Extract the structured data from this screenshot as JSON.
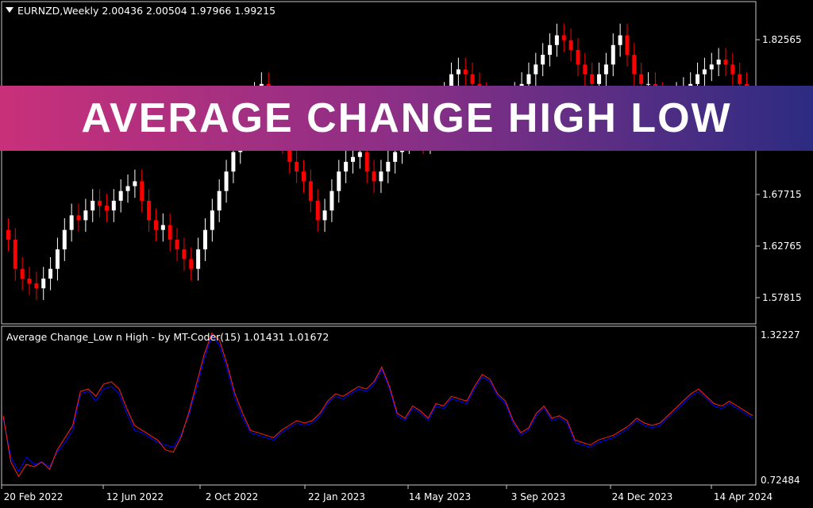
{
  "main_chart": {
    "symbol_line": "EURNZD,Weekly  2.00436 2.00504 1.97966 1.99215",
    "price_labels": [
      "1.82565",
      "1.67715",
      "1.62765",
      "1.57815"
    ],
    "colors": {
      "bull": "#ffffff",
      "bear": "#ff0000",
      "grid": "#c8c8c8"
    }
  },
  "indicator": {
    "title": "Average Change_Low n High - by MT-Coder(15) 1.01431 1.01672",
    "scale_labels": [
      "1.32227",
      "0.72484"
    ],
    "colors": {
      "line_low": "#0000ff",
      "line_high": "#ff2020"
    }
  },
  "time_axis": [
    "20 Feb 2022",
    "12 Jun 2022",
    "2 Oct 2022",
    "22 Jan 2023",
    "14 May 2023",
    "3 Sep 2023",
    "24 Dec 2023",
    "14 Apr 2024"
  ],
  "banner": {
    "text": "AVERAGE CHANGE HIGH LOW"
  },
  "chart_data": [
    {
      "type": "candlestick",
      "series": [
        {
          "name": "EURNZD,Weekly",
          "close": [
            1.63,
            1.6,
            1.59,
            1.585,
            1.58,
            1.59,
            1.6,
            1.62,
            1.64,
            1.655,
            1.65,
            1.66,
            1.67,
            1.665,
            1.66,
            1.67,
            1.68,
            1.685,
            1.69,
            1.67,
            1.65,
            1.64,
            1.645,
            1.63,
            1.62,
            1.61,
            1.6,
            1.62,
            1.64,
            1.66,
            1.68,
            1.7,
            1.72,
            1.74,
            1.76,
            1.78,
            1.79,
            1.76,
            1.74,
            1.73,
            1.71,
            1.7,
            1.69,
            1.67,
            1.65,
            1.66,
            1.68,
            1.7,
            1.71,
            1.715,
            1.72,
            1.7,
            1.69,
            1.7,
            1.71,
            1.72,
            1.73,
            1.74,
            1.735,
            1.73,
            1.745,
            1.76,
            1.78,
            1.8,
            1.805,
            1.8,
            1.79,
            1.78,
            1.77,
            1.76,
            1.75,
            1.77,
            1.78,
            1.79,
            1.8,
            1.81,
            1.82,
            1.83,
            1.84,
            1.835,
            1.825,
            1.81,
            1.8,
            1.79,
            1.8,
            1.81,
            1.83,
            1.84,
            1.82,
            1.8,
            1.79,
            1.79,
            1.78,
            1.77,
            1.775,
            1.78,
            1.785,
            1.79,
            1.8,
            1.805,
            1.81,
            1.815,
            1.81,
            1.8,
            1.79,
            1.78
          ]
        }
      ]
    },
    {
      "type": "line",
      "ylim": [
        0.72484,
        1.32227
      ],
      "series": [
        {
          "values": [
            0.98,
            0.82,
            0.76,
            0.82,
            0.79,
            0.8,
            0.78,
            0.84,
            0.88,
            0.93,
            1.08,
            1.09,
            1.05,
            1.1,
            1.11,
            1.08,
            1.0,
            0.93,
            0.92,
            0.9,
            0.88,
            0.87,
            0.86,
            0.91,
            0.99,
            1.1,
            1.22,
            1.32,
            1.28,
            1.18,
            1.06,
            0.98,
            0.92,
            0.91,
            0.9,
            0.89,
            0.92,
            0.94,
            0.96,
            0.95,
            0.96,
            0.99,
            1.04,
            1.07,
            1.06,
            1.08,
            1.1,
            1.09,
            1.12,
            1.18,
            1.1,
            0.99,
            0.97,
            1.02,
            1.0,
            0.97,
            1.03,
            1.02,
            1.06,
            1.05,
            1.04,
            1.1,
            1.15,
            1.13,
            1.07,
            1.04,
            0.96,
            0.91,
            0.93,
            0.99,
            1.02,
            0.97,
            0.98,
            0.96,
            0.88,
            0.87,
            0.86,
            0.88,
            0.89,
            0.9,
            0.92,
            0.94,
            0.97,
            0.95,
            0.94,
            0.95,
            0.98,
            1.01,
            1.04,
            1.07,
            1.09,
            1.06,
            1.03,
            1.02,
            1.04,
            1.02,
            1.0,
            0.98
          ]
        },
        {
          "values": [
            0.99,
            0.8,
            0.74,
            0.79,
            0.78,
            0.8,
            0.77,
            0.85,
            0.9,
            0.95,
            1.09,
            1.1,
            1.07,
            1.12,
            1.13,
            1.1,
            1.02,
            0.95,
            0.93,
            0.91,
            0.89,
            0.85,
            0.84,
            0.9,
            1.0,
            1.12,
            1.24,
            1.33,
            1.3,
            1.2,
            1.08,
            1.0,
            0.93,
            0.92,
            0.91,
            0.9,
            0.93,
            0.95,
            0.97,
            0.96,
            0.97,
            1.0,
            1.05,
            1.08,
            1.07,
            1.09,
            1.11,
            1.1,
            1.13,
            1.19,
            1.11,
            1.0,
            0.98,
            1.03,
            1.01,
            0.98,
            1.04,
            1.03,
            1.07,
            1.06,
            1.05,
            1.11,
            1.16,
            1.14,
            1.08,
            1.05,
            0.97,
            0.92,
            0.94,
            1.0,
            1.03,
            0.98,
            0.99,
            0.97,
            0.89,
            0.88,
            0.87,
            0.89,
            0.9,
            0.91,
            0.93,
            0.95,
            0.98,
            0.96,
            0.95,
            0.96,
            0.99,
            1.02,
            1.05,
            1.08,
            1.1,
            1.07,
            1.04,
            1.03,
            1.05,
            1.03,
            1.01,
            0.99
          ]
        }
      ]
    }
  ]
}
